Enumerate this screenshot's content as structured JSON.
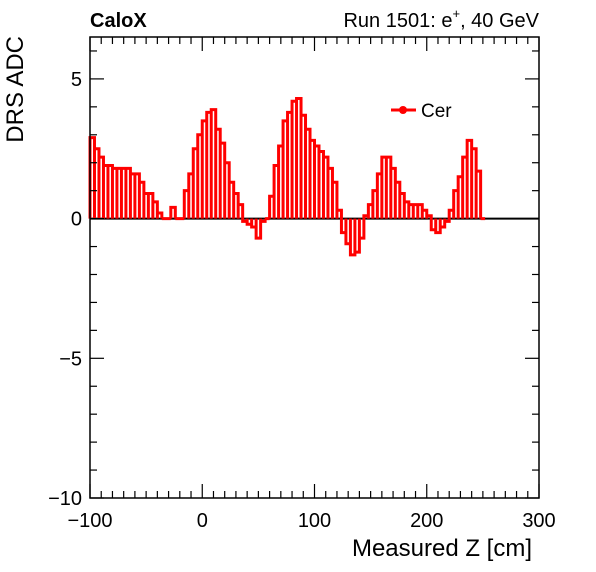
{
  "header": {
    "experiment_label": "CaloX",
    "run_label_prefix": "Run 1501: e",
    "run_label_sup": "+",
    "run_label_suffix": ", 40 GeV"
  },
  "chart_data": {
    "type": "line",
    "style": "histogram-step",
    "xlabel": "Measured Z [cm]",
    "ylabel": "DRS ADC",
    "xlim": [
      -100,
      300
    ],
    "ylim": [
      -10,
      6.5
    ],
    "x_ticks": [
      -100,
      0,
      100,
      200,
      300
    ],
    "x_tick_labels": [
      "−100",
      "0",
      "100",
      "200",
      "300"
    ],
    "y_ticks": [
      -10,
      -5,
      0,
      5
    ],
    "y_tick_labels": [
      "−10",
      "−5",
      "0",
      "5"
    ],
    "grid": false,
    "zero_line": true,
    "legend_position": "top-right",
    "series": [
      {
        "name": "Cer",
        "color": "#ff0000",
        "bin_width": 4,
        "x_start": -100,
        "values": [
          2.9,
          2.5,
          2.2,
          1.9,
          1.9,
          1.8,
          1.8,
          1.8,
          1.8,
          1.6,
          1.6,
          1.3,
          0.9,
          0.9,
          0.6,
          0.2,
          0.0,
          0.0,
          0.4,
          0.0,
          0.0,
          1.0,
          1.6,
          2.5,
          3.0,
          3.5,
          3.8,
          3.9,
          3.2,
          2.7,
          2.0,
          1.3,
          0.9,
          0.5,
          -0.1,
          -0.2,
          -0.3,
          -0.7,
          -0.1,
          0.0,
          0.8,
          1.9,
          2.6,
          3.5,
          3.8,
          4.2,
          4.3,
          3.7,
          3.2,
          2.8,
          2.6,
          2.4,
          2.2,
          1.8,
          1.3,
          0.3,
          -0.5,
          -0.9,
          -1.3,
          -1.2,
          -0.7,
          0.1,
          0.5,
          1.0,
          1.6,
          2.2,
          2.2,
          1.8,
          1.3,
          0.9,
          0.6,
          0.5,
          0.5,
          0.5,
          0.3,
          0.1,
          -0.4,
          -0.5,
          -0.3,
          -0.1,
          0.3,
          1.0,
          1.5,
          2.2,
          2.8,
          2.5,
          1.7,
          0.0
        ]
      }
    ]
  }
}
